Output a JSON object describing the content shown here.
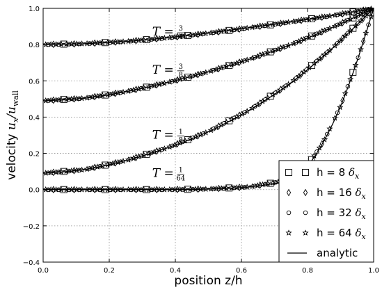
{
  "chart_data": {
    "type": "line",
    "xlabel": "position z/h",
    "ylabel_main": "velocity ",
    "ylabel_math": "u",
    "ylabel_math_sub": "x",
    "ylabel_slash": "/",
    "ylabel_math2": "u",
    "ylabel_math2_sub": "wall",
    "xlim": [
      0.0,
      1.0
    ],
    "ylim": [
      -0.4,
      1.0
    ],
    "xticks": [
      "0.0",
      "0.2",
      "0.4",
      "0.6",
      "0.8",
      "1.0"
    ],
    "yticks": [
      "−0.4",
      "−0.2",
      "0.0",
      "0.2",
      "0.4",
      "0.6",
      "0.8",
      "1.0"
    ],
    "xtick_values": [
      0.0,
      0.2,
      0.4,
      0.6,
      0.8,
      1.0
    ],
    "ytick_values": [
      -0.4,
      -0.2,
      0.0,
      0.2,
      0.4,
      0.6,
      0.8,
      1.0
    ],
    "grid": true,
    "legend_position": "bottom-right",
    "curves": [
      {
        "annotation_prefix": "T = ",
        "frac_num": "3",
        "frac_den": "4",
        "annotation_x": 0.33,
        "annotation_y": 0.85,
        "x": [
          0.0,
          0.125,
          0.25,
          0.375,
          0.5,
          0.625,
          0.75,
          0.875,
          1.0
        ],
        "y": [
          0.8,
          0.805,
          0.817,
          0.837,
          0.863,
          0.893,
          0.925,
          0.96,
          1.0
        ]
      },
      {
        "annotation_prefix": "T = ",
        "frac_num": "3",
        "frac_den": "8",
        "annotation_x": 0.33,
        "annotation_y": 0.64,
        "x": [
          0.0,
          0.125,
          0.25,
          0.375,
          0.5,
          0.625,
          0.75,
          0.875,
          1.0
        ],
        "y": [
          0.49,
          0.504,
          0.54,
          0.59,
          0.65,
          0.72,
          0.8,
          0.895,
          1.0
        ]
      },
      {
        "annotation_prefix": "T = ",
        "frac_num": "1",
        "frac_den": "8",
        "annotation_x": 0.33,
        "annotation_y": 0.28,
        "x": [
          0.0,
          0.125,
          0.25,
          0.375,
          0.5,
          0.625,
          0.75,
          0.875,
          1.0
        ],
        "y": [
          0.09,
          0.11,
          0.16,
          0.23,
          0.32,
          0.44,
          0.59,
          0.78,
          1.0
        ]
      },
      {
        "annotation_prefix": "T = ",
        "frac_num": "1",
        "frac_den": "64",
        "annotation_x": 0.33,
        "annotation_y": 0.07,
        "x": [
          0.0,
          0.125,
          0.25,
          0.375,
          0.5,
          0.625,
          0.75,
          0.8,
          0.85,
          0.9,
          0.95,
          1.0
        ],
        "y": [
          0.0,
          0.0,
          0.0,
          0.0,
          0.003,
          0.015,
          0.055,
          0.13,
          0.27,
          0.46,
          0.71,
          1.0
        ]
      }
    ],
    "legend": [
      {
        "marker": "square",
        "label": "h =  8 ",
        "sub": "δ",
        "subsub": "x"
      },
      {
        "marker": "diamond",
        "label": "h = 16 ",
        "sub": "δ",
        "subsub": "x"
      },
      {
        "marker": "circle",
        "label": "h = 32 ",
        "sub": "δ",
        "subsub": "x"
      },
      {
        "marker": "star",
        "label": "h = 64 ",
        "sub": "δ",
        "subsub": "x"
      },
      {
        "marker": "line",
        "label": "analytic",
        "sub": "",
        "subsub": ""
      }
    ],
    "colors": {
      "line": "#000000",
      "grid": "#8c8c8c",
      "frame": "#000000",
      "marker": "#000000"
    }
  }
}
